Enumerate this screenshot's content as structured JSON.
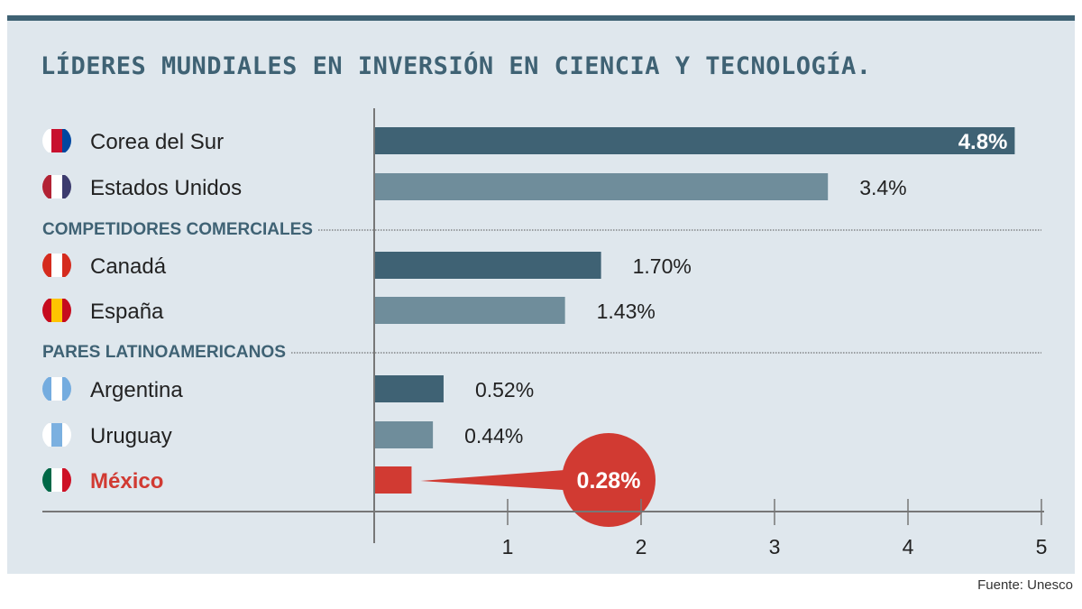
{
  "chart_data": {
    "type": "bar",
    "orientation": "horizontal",
    "title": "LÍDERES MUNDIALES EN INVERSIÓN EN CIENCIA Y TECNOLOGÍA.",
    "source": "Fuente: Unesco",
    "xlim": [
      0,
      5
    ],
    "xticks": [
      "1",
      "2",
      "3",
      "4",
      "5"
    ],
    "grid": false,
    "colors": {
      "dark": "#3f6274",
      "light": "#6f8d9b",
      "highlight": "#d13a32",
      "group": "#3f6274"
    },
    "rows": [
      {
        "kind": "item",
        "label": "Corea del Sur",
        "value": 4.8,
        "value_label": "4.8%",
        "flag": "south-korea-flag-icon",
        "shade": "dark"
      },
      {
        "kind": "item",
        "label": "Estados Unidos",
        "value": 3.4,
        "value_label": "3.4%",
        "flag": "usa-flag-icon",
        "shade": "light"
      },
      {
        "kind": "group",
        "label": "COMPETIDORES COMERCIALES"
      },
      {
        "kind": "item",
        "label": "Canadá",
        "value": 1.7,
        "value_label": "1.70%",
        "flag": "canada-flag-icon",
        "shade": "dark"
      },
      {
        "kind": "item",
        "label": "España",
        "value": 1.43,
        "value_label": "1.43%",
        "flag": "spain-flag-icon",
        "shade": "light"
      },
      {
        "kind": "group",
        "label": "PARES LATINOAMERICANOS"
      },
      {
        "kind": "item",
        "label": "Argentina",
        "value": 0.52,
        "value_label": "0.52%",
        "flag": "argentina-flag-icon",
        "shade": "dark"
      },
      {
        "kind": "item",
        "label": "Uruguay",
        "value": 0.44,
        "value_label": "0.44%",
        "flag": "uruguay-flag-icon",
        "shade": "light"
      },
      {
        "kind": "item",
        "label": "México",
        "value": 0.28,
        "value_label": "0.28%",
        "flag": "mexico-flag-icon",
        "shade": "highlight",
        "callout": true
      }
    ]
  }
}
